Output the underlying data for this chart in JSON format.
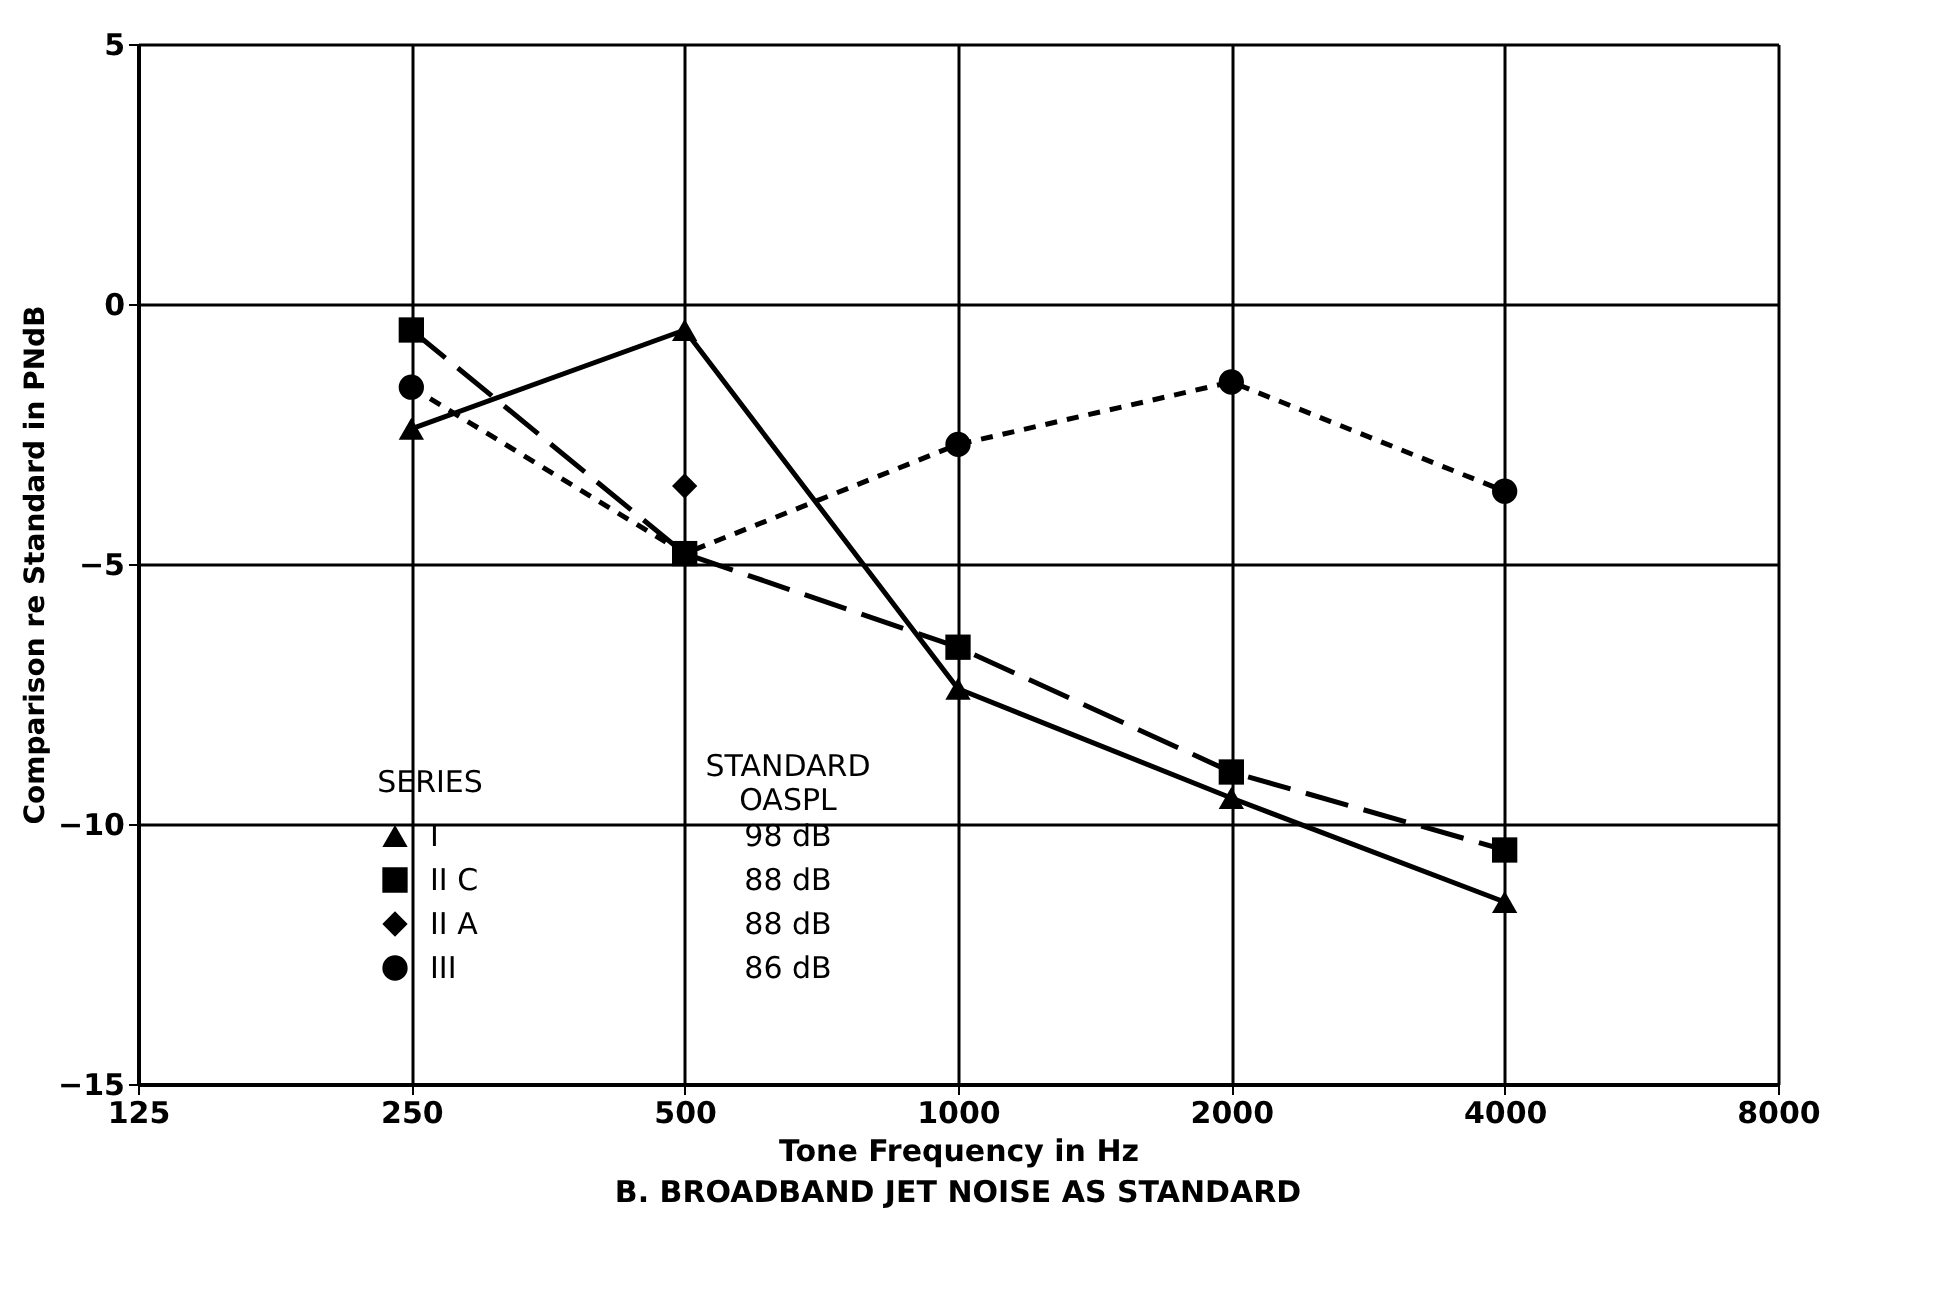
{
  "chart_data": {
    "type": "line",
    "title": "B. BROADBAND JET NOISE AS STANDARD",
    "xlabel": "Tone Frequency in Hz",
    "ylabel": "Comparison re Standard in PNdB",
    "legend_title": "SERIES",
    "annotations": [
      "STANDARD OASPL",
      "98 dB",
      "88 dB",
      "88 dB",
      "86 dB"
    ],
    "x": [
      250,
      500,
      1000,
      2000,
      4000
    ],
    "series": [
      {
        "name": "I",
        "color": "#000000",
        "marker": "triangle",
        "line_style": "solid",
        "values": [
          -2.4,
          -0.5,
          -7.4,
          -9.5,
          -11.5
        ]
      },
      {
        "name": "II C",
        "color": "#000000",
        "marker": "square",
        "line_style": "dashed",
        "values": [
          -0.5,
          -4.8,
          -6.6,
          -9.0,
          -10.5
        ]
      },
      {
        "name": "II A",
        "type": "scatter",
        "color": "#000000",
        "marker": "diamond",
        "x": [
          500
        ],
        "values": [
          -3.5
        ]
      },
      {
        "name": "III",
        "color": "#000000",
        "marker": "circle",
        "line_style": "dotted",
        "values": [
          -1.6,
          -4.8,
          -2.7,
          -1.5,
          -3.6
        ]
      }
    ],
    "log": "x",
    "xlim": [
      125,
      8000
    ],
    "xticks": [
      125,
      250,
      500,
      1000,
      2000,
      4000,
      8000
    ],
    "ylim": [
      -15,
      5
    ],
    "yticks": [
      -15,
      -10,
      -5,
      0,
      5
    ],
    "grid": true,
    "legend": "bottom left"
  }
}
